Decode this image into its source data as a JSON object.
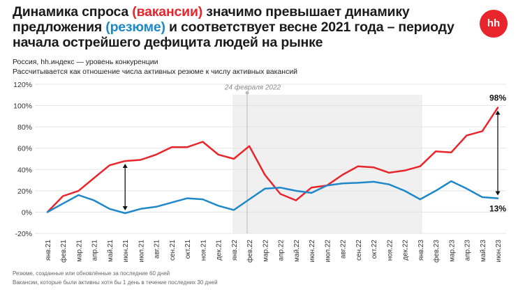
{
  "header": {
    "title_part1": "Динамика спроса ",
    "title_red": "(вакансии)",
    "title_part2": " значимо превышает динамику предложения ",
    "title_blue": "(резюме)",
    "title_part3": " и соответствует весне 2021 года – периоду начала острейшего дефицита людей на рынке",
    "logo_text": "hh",
    "subtitle_1": "Россия, hh.индекс — уровень конкуренции",
    "subtitle_2": "Рассчитывается как отношение числа активных резюме к числу активных вакансий"
  },
  "footer": {
    "note_1": "Резюме, созданные или обновлённые за последние 60 дней",
    "note_2": "Вакансии, которые были активны хотя бы 1 день в течение последних 30 дней"
  },
  "colors": {
    "vacancies": "#e8252b",
    "resumes": "#1e88c9",
    "brand": "#e8252b",
    "shade": "#f0f0f0"
  },
  "chart_data": {
    "type": "line",
    "categories": [
      "янв.21",
      "фев.21",
      "мар.21",
      "апр.21",
      "май.21",
      "июн.21",
      "июл.21",
      "авг.21",
      "сен.21",
      "окт.21",
      "ноя.21",
      "дек.21",
      "янв.22",
      "фев.22",
      "мар.22",
      "апр.22",
      "май.22",
      "июн.22",
      "июл.22",
      "авг.22",
      "сен.22",
      "окт.22",
      "ноя.22",
      "дек.22",
      "янв.23",
      "фев.23",
      "мар.23",
      "апр.23",
      "май.23",
      "июн.23"
    ],
    "series": [
      {
        "key": "vacancies",
        "values": [
          0,
          15,
          20,
          32,
          44,
          48,
          49,
          54,
          61,
          61,
          66,
          54,
          50,
          62,
          35,
          17,
          11,
          23,
          25,
          35,
          43,
          42,
          37,
          39,
          43,
          57,
          56,
          72,
          76,
          98
        ]
      },
      {
        "key": "resumes",
        "values": [
          0,
          8,
          16,
          11,
          3,
          -1,
          3,
          5,
          9,
          13,
          12,
          6,
          2,
          12,
          22,
          23,
          20,
          18,
          25,
          27,
          27.5,
          28.5,
          26,
          20,
          12,
          20,
          29,
          22,
          14,
          13
        ]
      }
    ],
    "yticks": [
      "-20%",
      "0%",
      "20%",
      "40%",
      "60%",
      "80%",
      "100%",
      "120%"
    ],
    "ylim": [
      -20,
      120
    ],
    "annotations": {
      "event_label": "24 февраля 2022",
      "end_red_label": "98%",
      "end_blue_label": "13%"
    },
    "shaded_range": [
      "янв.22",
      "янв.23"
    ],
    "grid": "horizontal"
  }
}
